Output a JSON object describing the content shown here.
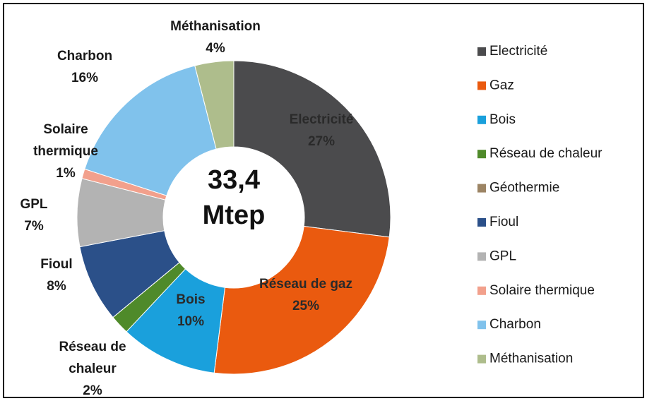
{
  "chart_data": {
    "type": "donut",
    "center_label": [
      "33,4",
      "Mtep"
    ],
    "categories": [
      "Electricité",
      "Gaz",
      "Bois",
      "Réseau de chaleur",
      "Géothermie",
      "Fioul",
      "GPL",
      "Solaire thermique",
      "Charbon",
      "Méthanisation"
    ],
    "values": [
      27,
      25,
      10,
      2,
      0,
      8,
      7,
      1,
      16,
      4
    ],
    "value_labels": [
      "27%",
      "25%",
      "10%",
      "2%",
      null,
      "8%",
      "7%",
      "1%",
      "16%",
      "4%"
    ],
    "data_labels": [
      [
        "Electricité"
      ],
      [
        "Réseau de gaz"
      ],
      [
        "Bois"
      ],
      [
        "Réseau de",
        "chaleur"
      ],
      null,
      [
        "Fioul"
      ],
      [
        "GPL"
      ],
      [
        "Solaire",
        "thermique"
      ],
      [
        "Charbon"
      ],
      [
        "Méthanisation"
      ]
    ],
    "colors": [
      "#4b4b4d",
      "#ea5a0f",
      "#1aa0dc",
      "#4f8a2a",
      "#9c8464",
      "#2b5089",
      "#b3b3b3",
      "#f2a08c",
      "#80c2ec",
      "#aebd8c"
    ]
  }
}
